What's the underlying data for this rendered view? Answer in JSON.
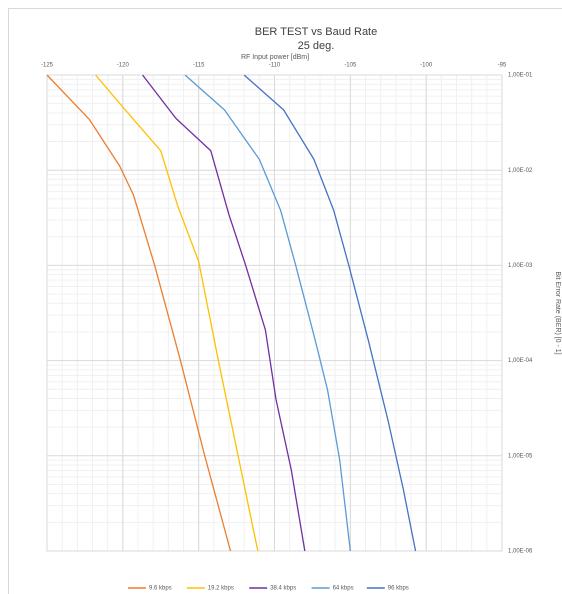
{
  "chart_data": {
    "type": "line",
    "title": "BER TEST vs Baud Rate",
    "subtitle": "25 deg.",
    "x_label": "RF Input power [dBm]",
    "y_label": "Bit Error Rate (BER) [0 - 1]",
    "xlim": [
      -125,
      -95
    ],
    "xticks": [
      -125,
      -120,
      -115,
      -110,
      -105,
      -100,
      -95
    ],
    "ylim": [
      1e-06,
      0.1
    ],
    "yticks": [
      {
        "value": 0.1,
        "label": "1,00E-01"
      },
      {
        "value": 0.01,
        "label": "1,00E-02"
      },
      {
        "value": 0.001,
        "label": "1,00E-03"
      },
      {
        "value": 0.0001,
        "label": "1,00E-04"
      },
      {
        "value": 1e-05,
        "label": "1,00E-05"
      },
      {
        "value": 1e-06,
        "label": "1,00E-06"
      }
    ],
    "y_log": true,
    "grid": true,
    "minor_grid": true,
    "legend": "bottom",
    "series": [
      {
        "name": "9.6 kbps",
        "color": "#ed7d31",
        "x": [
          -125,
          -122.2,
          -120.2,
          -119.3,
          -117.9,
          -116.2,
          -114.6,
          -112.9
        ],
        "values": [
          0.1,
          0.034,
          0.011,
          0.0055,
          0.001,
          0.0001,
          1e-05,
          1e-06
        ]
      },
      {
        "name": "19.2 kbps",
        "color": "#ffc000",
        "x": [
          -121.8,
          -120,
          -117.5,
          -116.4,
          -115,
          -113.7,
          -112.4,
          -111.1
        ],
        "values": [
          0.1,
          0.046,
          0.016,
          0.0043,
          0.0011,
          0.0001,
          1e-05,
          1e-06
        ]
      },
      {
        "name": "38.4 kbps",
        "color": "#7030a0",
        "x": [
          -118.7,
          -116.5,
          -114.2,
          -113,
          -111.9,
          -110.6,
          -109.9,
          -108.9,
          -108
        ],
        "values": [
          0.1,
          0.035,
          0.016,
          0.0034,
          0.001,
          0.00021,
          3.9e-05,
          7.2e-06,
          1e-06
        ]
      },
      {
        "name": "64 kbps",
        "color": "#5b9bd5",
        "x": [
          -115.9,
          -113.3,
          -111,
          -109.6,
          -108.6,
          -107.3,
          -106.5,
          -105.7,
          -105
        ],
        "values": [
          0.1,
          0.043,
          0.013,
          0.0038,
          0.001,
          0.00016,
          4.9e-05,
          9e-06,
          1e-06
        ]
      },
      {
        "name": "96 kbps",
        "color": "#4472c4",
        "x": [
          -112,
          -109.4,
          -107.4,
          -106.1,
          -105.1,
          -103.8,
          -102.5,
          -101.5,
          -100.7
        ],
        "values": [
          0.1,
          0.043,
          0.013,
          0.0038,
          0.001,
          0.00016,
          2.3e-05,
          4.4e-06,
          1e-06
        ]
      }
    ]
  }
}
